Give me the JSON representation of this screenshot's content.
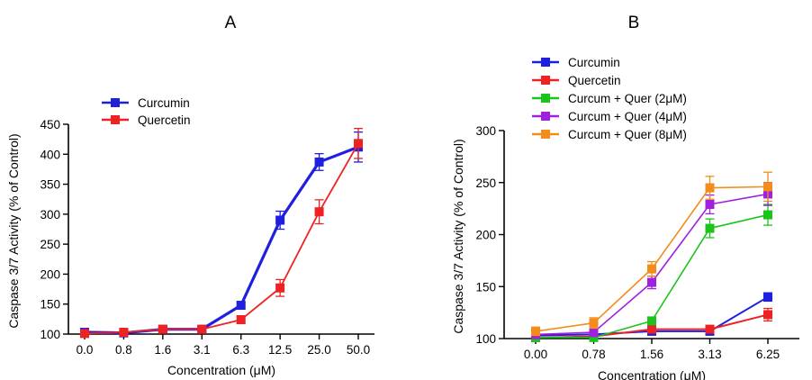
{
  "chart_data": [
    {
      "type": "line",
      "panel_label": "A",
      "xlabel": "Concentration (μM)",
      "ylabel": "Caspase 3/7 Activity (% of Control)",
      "categories": [
        "0.0",
        "0.8",
        "1.6",
        "3.1",
        "6.3",
        "12.5",
        "25.0",
        "50.0"
      ],
      "yticks": [
        "100",
        "150",
        "200",
        "250",
        "300",
        "350",
        "400",
        "450"
      ],
      "ylim": [
        100,
        450
      ],
      "grid": false,
      "legend_position": "top-left",
      "series": [
        {
          "name": "Curcumin",
          "color": "#1f1fe0",
          "values": [
            103,
            102,
            108,
            108,
            148,
            290,
            387,
            412
          ],
          "errors": [
            3,
            3,
            4,
            4,
            5,
            15,
            14,
            25
          ]
        },
        {
          "name": "Quercetin",
          "color": "#ee2222",
          "values": [
            101,
            103,
            108,
            108,
            124,
            177,
            304,
            418
          ],
          "errors": [
            3,
            3,
            4,
            4,
            6,
            14,
            20,
            25
          ]
        }
      ]
    },
    {
      "type": "line",
      "panel_label": "B",
      "xlabel": "Concentration (μM)",
      "ylabel": "Caspase 3/7 Activity (% of Control)",
      "categories": [
        "0.00",
        "0.78",
        "1.56",
        "3.13",
        "6.25"
      ],
      "yticks": [
        "100",
        "150",
        "200",
        "250",
        "300"
      ],
      "ylim": [
        100,
        300
      ],
      "grid": false,
      "legend_position": "top-left",
      "series": [
        {
          "name": "Curcumin",
          "color": "#1f1fe0",
          "values": [
            103,
            104,
            107,
            107,
            140
          ],
          "errors": [
            3,
            3,
            3,
            3,
            4
          ]
        },
        {
          "name": "Quercetin",
          "color": "#ee2222",
          "values": [
            101,
            102,
            109,
            109,
            123
          ],
          "errors": [
            3,
            3,
            3,
            3,
            6
          ]
        },
        {
          "name": "Curcum + Quer (2μM)",
          "color": "#1bc41b",
          "values": [
            101,
            101,
            117,
            206,
            219
          ],
          "errors": [
            3,
            3,
            3,
            9,
            10
          ]
        },
        {
          "name": "Curcum + Quer (4μM)",
          "color": "#a020e0",
          "values": [
            104,
            106,
            154,
            229,
            239
          ],
          "errors": [
            4,
            4,
            6,
            9,
            11
          ]
        },
        {
          "name": "Curcum + Quer (8μM)",
          "color": "#f28c1a",
          "values": [
            107,
            115,
            167,
            245,
            246
          ],
          "errors": [
            4,
            5,
            7,
            11,
            14
          ]
        }
      ]
    }
  ]
}
